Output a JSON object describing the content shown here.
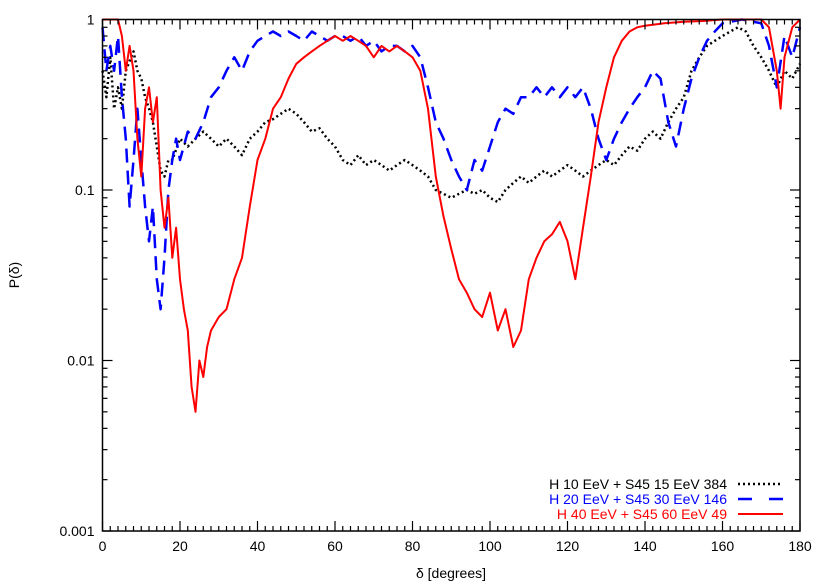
{
  "chart_data": {
    "type": "line",
    "title": "",
    "xlabel": "δ [degrees]",
    "ylabel": "P(δ)",
    "xlim": [
      0,
      180
    ],
    "ylim": [
      0.001,
      1
    ],
    "yscale": "log",
    "grid": false,
    "legend_position": "bottom-right",
    "xticks": [
      "0",
      "20",
      "40",
      "60",
      "80",
      "100",
      "120",
      "140",
      "160",
      "180"
    ],
    "yticks": [
      "0.001",
      "0.01",
      "0.1",
      "1"
    ],
    "series": [
      {
        "name": "H 10 EeV + S45 15 EeV 384",
        "color": "#000000",
        "style": "dotted",
        "x": [
          0,
          1,
          2,
          3,
          4,
          5,
          6,
          8,
          9,
          10,
          11,
          12,
          13,
          14,
          15,
          16,
          17,
          18,
          20,
          22,
          24,
          26,
          28,
          30,
          32,
          34,
          36,
          38,
          40,
          42,
          44,
          46,
          48,
          50,
          52,
          54,
          56,
          58,
          60,
          62,
          64,
          66,
          68,
          70,
          72,
          74,
          76,
          78,
          80,
          82,
          84,
          86,
          88,
          90,
          92,
          94,
          96,
          98,
          100,
          102,
          104,
          106,
          108,
          110,
          112,
          114,
          116,
          118,
          120,
          122,
          124,
          126,
          128,
          130,
          132,
          134,
          136,
          138,
          140,
          142,
          144,
          146,
          148,
          150,
          152,
          154,
          156,
          158,
          160,
          162,
          164,
          166,
          168,
          170,
          172,
          174,
          176,
          178,
          180
        ],
        "y": [
          0.5,
          0.35,
          0.6,
          0.3,
          0.4,
          0.3,
          0.5,
          0.65,
          0.5,
          0.45,
          0.35,
          0.3,
          0.25,
          0.18,
          0.13,
          0.12,
          0.15,
          0.15,
          0.2,
          0.18,
          0.2,
          0.22,
          0.2,
          0.18,
          0.2,
          0.18,
          0.16,
          0.2,
          0.22,
          0.25,
          0.26,
          0.28,
          0.3,
          0.28,
          0.25,
          0.22,
          0.23,
          0.2,
          0.18,
          0.15,
          0.14,
          0.16,
          0.14,
          0.15,
          0.14,
          0.13,
          0.14,
          0.15,
          0.14,
          0.13,
          0.12,
          0.1,
          0.095,
          0.09,
          0.095,
          0.1,
          0.095,
          0.1,
          0.09,
          0.085,
          0.1,
          0.11,
          0.12,
          0.11,
          0.12,
          0.13,
          0.12,
          0.13,
          0.14,
          0.13,
          0.12,
          0.13,
          0.14,
          0.15,
          0.14,
          0.16,
          0.18,
          0.17,
          0.2,
          0.22,
          0.2,
          0.25,
          0.3,
          0.35,
          0.5,
          0.6,
          0.7,
          0.75,
          0.8,
          0.85,
          0.9,
          0.85,
          0.7,
          0.6,
          0.5,
          0.4,
          0.5,
          0.45,
          0.55
        ]
      },
      {
        "name": "H 20 EeV + S45 30 EeV 146",
        "color": "#0000ff",
        "style": "dashed",
        "x": [
          0,
          1,
          2,
          3,
          4,
          5,
          6,
          7,
          8,
          9,
          10,
          11,
          12,
          13,
          14,
          15,
          16,
          17,
          18,
          19,
          20,
          22,
          24,
          26,
          28,
          30,
          32,
          34,
          36,
          38,
          40,
          42,
          44,
          46,
          48,
          50,
          52,
          54,
          56,
          58,
          60,
          62,
          64,
          66,
          68,
          70,
          72,
          74,
          76,
          78,
          80,
          82,
          84,
          86,
          88,
          90,
          92,
          94,
          96,
          98,
          100,
          102,
          104,
          106,
          108,
          110,
          112,
          114,
          116,
          118,
          120,
          122,
          124,
          126,
          128,
          130,
          132,
          134,
          136,
          138,
          140,
          142,
          144,
          146,
          148,
          150,
          152,
          154,
          156,
          158,
          160,
          165,
          170,
          172,
          174,
          176,
          178,
          180
        ],
        "y": [
          0.9,
          0.5,
          0.7,
          0.5,
          0.8,
          0.35,
          0.2,
          0.08,
          0.15,
          0.3,
          0.15,
          0.08,
          0.05,
          0.08,
          0.03,
          0.02,
          0.04,
          0.1,
          0.15,
          0.2,
          0.15,
          0.22,
          0.2,
          0.25,
          0.35,
          0.4,
          0.5,
          0.6,
          0.5,
          0.65,
          0.75,
          0.8,
          0.85,
          0.8,
          0.85,
          0.8,
          0.75,
          0.85,
          0.8,
          0.75,
          0.8,
          0.8,
          0.75,
          0.8,
          0.7,
          0.75,
          0.65,
          0.7,
          0.7,
          0.65,
          0.7,
          0.6,
          0.4,
          0.25,
          0.2,
          0.15,
          0.12,
          0.1,
          0.15,
          0.13,
          0.18,
          0.25,
          0.3,
          0.28,
          0.35,
          0.35,
          0.4,
          0.35,
          0.4,
          0.35,
          0.4,
          0.35,
          0.4,
          0.3,
          0.2,
          0.15,
          0.2,
          0.25,
          0.3,
          0.35,
          0.4,
          0.5,
          0.45,
          0.25,
          0.18,
          0.3,
          0.45,
          0.6,
          0.75,
          0.85,
          0.95,
          1,
          0.95,
          0.7,
          0.4,
          0.8,
          0.6,
          0.9
        ]
      },
      {
        "name": "H 40 EeV + S45 60 EeV 49",
        "color": "#ff0000",
        "style": "solid",
        "x": [
          0,
          4,
          5,
          6,
          7,
          8,
          9,
          10,
          11,
          12,
          13,
          14,
          15,
          16,
          17,
          18,
          19,
          20,
          21,
          22,
          23,
          24,
          25,
          26,
          27,
          28,
          30,
          32,
          34,
          36,
          38,
          40,
          42,
          44,
          46,
          48,
          50,
          52,
          54,
          56,
          58,
          60,
          62,
          64,
          66,
          68,
          70,
          72,
          74,
          76,
          78,
          80,
          82,
          84,
          86,
          88,
          90,
          92,
          94,
          96,
          98,
          100,
          102,
          104,
          106,
          108,
          110,
          112,
          114,
          116,
          118,
          120,
          122,
          124,
          126,
          128,
          130,
          132,
          134,
          136,
          138,
          140,
          145,
          150,
          155,
          160,
          165,
          170,
          172,
          174,
          175,
          176,
          178,
          180
        ],
        "y": [
          1,
          1,
          0.8,
          0.5,
          0.7,
          0.5,
          0.2,
          0.12,
          0.3,
          0.4,
          0.25,
          0.35,
          0.1,
          0.06,
          0.09,
          0.04,
          0.06,
          0.03,
          0.02,
          0.015,
          0.007,
          0.005,
          0.01,
          0.008,
          0.012,
          0.015,
          0.018,
          0.02,
          0.03,
          0.04,
          0.08,
          0.15,
          0.2,
          0.3,
          0.35,
          0.45,
          0.55,
          0.6,
          0.65,
          0.7,
          0.75,
          0.8,
          0.75,
          0.8,
          0.75,
          0.7,
          0.6,
          0.7,
          0.65,
          0.7,
          0.65,
          0.6,
          0.5,
          0.3,
          0.12,
          0.07,
          0.045,
          0.03,
          0.025,
          0.02,
          0.018,
          0.025,
          0.015,
          0.02,
          0.012,
          0.015,
          0.03,
          0.04,
          0.05,
          0.055,
          0.065,
          0.05,
          0.03,
          0.06,
          0.12,
          0.25,
          0.4,
          0.6,
          0.75,
          0.85,
          0.9,
          0.92,
          0.95,
          0.97,
          0.98,
          1,
          1,
          1,
          0.9,
          0.5,
          0.3,
          0.6,
          0.9,
          1
        ]
      }
    ]
  }
}
